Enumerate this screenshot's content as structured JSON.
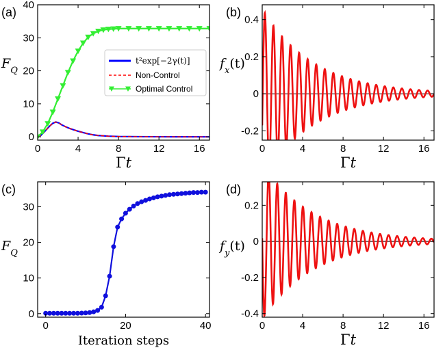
{
  "chart_data": [
    {
      "panel": "(a)",
      "type": "line",
      "xlabel": "Γt",
      "ylabel": "F_Q",
      "xlim": [
        0,
        17
      ],
      "ylim": [
        -1,
        40
      ],
      "xticks": [
        0,
        4,
        8,
        12,
        16
      ],
      "yticks": [
        0,
        10,
        20,
        30,
        40
      ],
      "legend_position": "right",
      "series": [
        {
          "name": "t²exp[−2γ(t)]",
          "color": "#0000ff",
          "style": "solid",
          "x": [
            0,
            0.3,
            0.6,
            0.9,
            1.2,
            1.5,
            1.8,
            2.1,
            2.4,
            2.8,
            3.2,
            3.6,
            4.0,
            4.5,
            5.0,
            5.5,
            6.0,
            7.0,
            8.0,
            10.0,
            12.0,
            14.0,
            17.0
          ],
          "y": [
            0,
            0.4,
            1.3,
            2.3,
            3.3,
            4.1,
            4.5,
            4.2,
            3.6,
            3.0,
            2.5,
            2.1,
            1.7,
            1.3,
            0.9,
            0.6,
            0.4,
            0.2,
            0.1,
            0.05,
            0.02,
            0.01,
            0
          ]
        },
        {
          "name": "Non-Control",
          "color": "#ff0000",
          "style": "dashed",
          "x": [
            0,
            0.3,
            0.6,
            0.9,
            1.2,
            1.5,
            1.8,
            2.1,
            2.4,
            2.8,
            3.2,
            3.6,
            4.0,
            4.5,
            5.0,
            5.5,
            6.0,
            7.0,
            8.0,
            10.0,
            12.0,
            14.0,
            17.0
          ],
          "y": [
            0,
            0.4,
            1.3,
            2.3,
            3.3,
            4.1,
            4.5,
            4.2,
            3.6,
            3.0,
            2.5,
            2.1,
            1.7,
            1.3,
            0.9,
            0.6,
            0.4,
            0.2,
            0.1,
            0.05,
            0.02,
            0.01,
            0
          ]
        },
        {
          "name": "Optimal Control",
          "color": "#33ee33",
          "style": "solid",
          "marker": "triangle-down",
          "x": [
            0,
            0.5,
            1.0,
            1.5,
            2.0,
            2.5,
            3.0,
            3.5,
            4.0,
            4.5,
            5.0,
            5.5,
            6.0,
            6.5,
            7.0,
            7.5,
            8.0,
            9.0,
            10.0,
            11.0,
            12.0,
            13.0,
            14.0,
            15.0,
            16.0,
            17.0
          ],
          "y": [
            0,
            1.5,
            4.0,
            7.5,
            11.5,
            15.5,
            19.5,
            23.0,
            26.0,
            28.4,
            30.2,
            31.3,
            32.0,
            32.4,
            32.6,
            32.7,
            32.8,
            32.8,
            32.8,
            32.8,
            32.8,
            32.8,
            32.8,
            32.8,
            32.8,
            32.8
          ]
        }
      ]
    },
    {
      "panel": "(b)",
      "type": "line",
      "xlabel": "Γt",
      "ylabel": "f_x(t)",
      "xlim": [
        0,
        17
      ],
      "ylim": [
        -0.25,
        0.48
      ],
      "xticks": [
        0,
        4,
        8,
        12,
        16
      ],
      "yticks": [
        -0.2,
        0.0,
        0.2,
        0.4
      ],
      "zero_line": true,
      "series": [
        {
          "name": "",
          "color": "#ee1111",
          "style": "solid",
          "function": "damped_cos",
          "amplitude": 0.46,
          "frequency": 1.18,
          "phase": -1.95,
          "decay": 0.2
        }
      ]
    },
    {
      "panel": "(c)",
      "type": "line",
      "xlabel": "Iteration steps",
      "ylabel": "F_Q",
      "xlim": [
        -2,
        41
      ],
      "ylim": [
        -1,
        37
      ],
      "xticks": [
        0,
        20,
        40
      ],
      "yticks": [
        0,
        10,
        20,
        30
      ],
      "series": [
        {
          "name": "",
          "color": "#1010dd",
          "style": "solid",
          "marker": "circle",
          "x": [
            0,
            1,
            2,
            3,
            4,
            5,
            6,
            7,
            8,
            9,
            10,
            11,
            12,
            13,
            14,
            15,
            16,
            17,
            18,
            19,
            20,
            21,
            22,
            23,
            24,
            25,
            26,
            27,
            28,
            29,
            30,
            31,
            32,
            33,
            34,
            35,
            36,
            37,
            38,
            39,
            40
          ],
          "y": [
            0.1,
            0.1,
            0.1,
            0.1,
            0.1,
            0.1,
            0.1,
            0.1,
            0.1,
            0.15,
            0.2,
            0.3,
            0.5,
            0.9,
            1.8,
            5.0,
            10.5,
            18.8,
            24.3,
            26.6,
            28.2,
            29.3,
            30.2,
            30.9,
            31.4,
            31.8,
            32.2,
            32.5,
            32.8,
            33.0,
            33.2,
            33.4,
            33.5,
            33.6,
            33.7,
            33.8,
            33.9,
            34.0,
            34.0,
            34.1,
            34.1
          ]
        }
      ]
    },
    {
      "panel": "(d)",
      "type": "line",
      "xlabel": "Γt",
      "ylabel": "f_y(t)",
      "xlim": [
        0,
        17
      ],
      "ylim": [
        -0.42,
        0.33
      ],
      "xticks": [
        0,
        4,
        8,
        12,
        16
      ],
      "yticks": [
        -0.4,
        -0.2,
        0.0,
        0.2
      ],
      "zero_line": true,
      "series": [
        {
          "name": "",
          "color": "#ee1111",
          "style": "solid",
          "function": "damped_sin",
          "amplitude": 0.43,
          "frequency": 1.18,
          "phase": 3.1,
          "decay": 0.2
        }
      ]
    }
  ]
}
